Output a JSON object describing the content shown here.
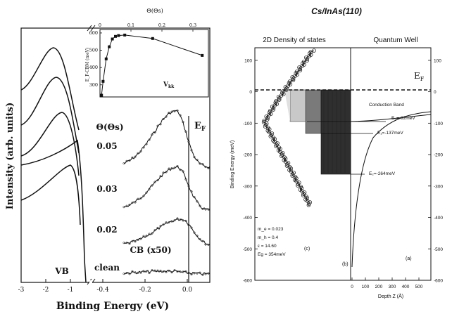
{
  "left_panel": {
    "y_axis_label": "Intensity (arb. units)",
    "x_axis_label": "Binding Energy (eV)",
    "vb_label": "VB",
    "cb_label": "CB (x50)",
    "ef_label": "E",
    "ef_sub": "F",
    "theta_label": "Θ(Θs)",
    "coverage_labels": [
      "0.05",
      "0.03",
      "0.02",
      "clean"
    ],
    "x_ticks_vb": [
      "-3",
      "-2",
      "-1"
    ],
    "x_ticks_cb": [
      "-0.4",
      "-0.2",
      "0.0"
    ],
    "inset": {
      "top_axis_label": "Θ(Θs)",
      "top_ticks": [
        "0",
        "0.1",
        "0.2",
        "0.3"
      ],
      "y_axis_label": "E_F-CBM (meV)",
      "y_ticks": [
        "600",
        "500",
        "400",
        "300"
      ],
      "annotation": "V",
      "annotation_sub": "kk"
    }
  },
  "right_panel": {
    "title": "Cs/InAs(110)",
    "dos_title": "2D Density of states",
    "qw_title": "Quantum Well",
    "y_axis_label": "Binding Energy (meV)",
    "y_ticks_left": [
      "100",
      "0",
      "-100",
      "-200",
      "-300",
      "-400",
      "-500",
      "-600"
    ],
    "y_ticks_right": [
      "100",
      "0",
      "-100",
      "-200",
      "-300",
      "-400",
      "-500",
      "-600"
    ],
    "x_axis_label": "Depth Z (Å)",
    "x_ticks": [
      "0",
      "100",
      "200",
      "300",
      "400",
      "500"
    ],
    "ef_label": "E",
    "ef_sub": "F",
    "conduction_band_label": "Conduction Band",
    "level_labels": [
      "E₀=-92meV",
      "E₁=-137meV",
      "E₂=-264meV"
    ],
    "params": [
      "m_e = 0.023",
      "m_h = 0.4",
      "ε = 14.60",
      "Eg = 354meV"
    ],
    "panel_labels": [
      "(c)",
      "(b)",
      "(a)"
    ]
  },
  "chart_data": [
    {
      "type": "scatter",
      "title": "",
      "xlabel": "Θ(Θs)",
      "ylabel": "E_F-CBM (meV)",
      "xlim": [
        0,
        0.35
      ],
      "ylim": [
        230,
        620
      ],
      "x": [
        0.005,
        0.01,
        0.02,
        0.03,
        0.04,
        0.05,
        0.06,
        0.08,
        0.17,
        0.33
      ],
      "y": [
        240,
        320,
        450,
        520,
        565,
        580,
        585,
        588,
        568,
        470
      ]
    },
    {
      "type": "line",
      "title": "Cs/InAs(110)",
      "xlabel": "Depth Z (Å)",
      "ylabel": "Binding Energy (meV)",
      "ylim": [
        -600,
        140
      ],
      "xlim": [
        0,
        550
      ],
      "levels_meV": [
        -92,
        -137,
        -264
      ]
    }
  ]
}
